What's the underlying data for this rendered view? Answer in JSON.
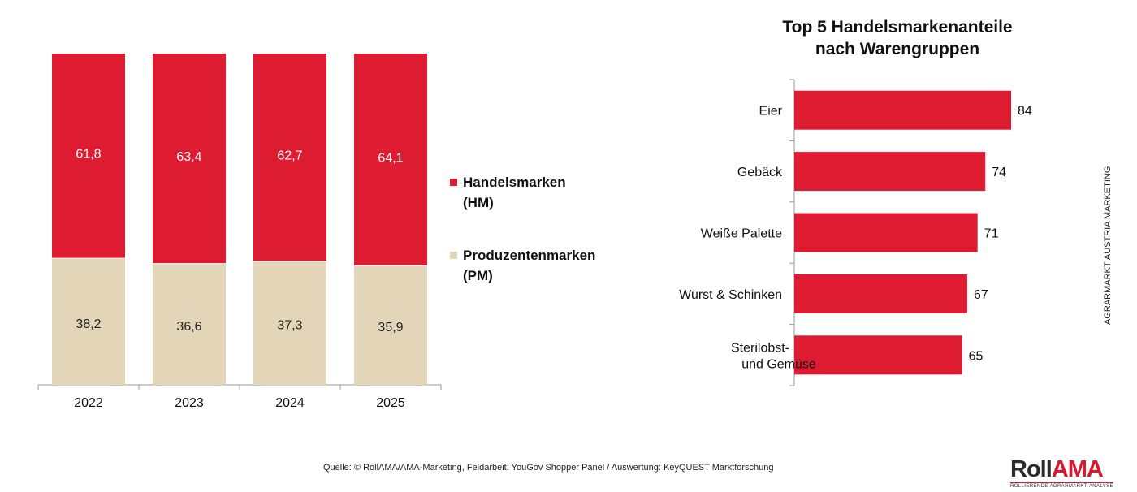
{
  "colors": {
    "hm": "#dd1b31",
    "pm": "#e3d5b8",
    "axis": "#999999"
  },
  "chart_data": [
    {
      "type": "bar",
      "stacked": true,
      "categories": [
        "2022",
        "2023",
        "2024",
        "2025"
      ],
      "series": [
        {
          "name": "Produzentenmarken (PM)",
          "values": [
            38.2,
            36.6,
            37.3,
            35.9
          ],
          "labels": [
            "38,2",
            "36,6",
            "37,3",
            "35,9"
          ]
        },
        {
          "name": "Handelsmarken (HM)",
          "values": [
            61.8,
            63.4,
            62.7,
            64.1
          ],
          "labels": [
            "61,8",
            "63,4",
            "62,7",
            "64,1"
          ]
        }
      ],
      "ylim": [
        0,
        100
      ],
      "grid": false,
      "legend": "right"
    },
    {
      "type": "bar",
      "orientation": "horizontal",
      "title": "Top 5 Handelsmarkenanteile nach Warengruppen",
      "categories": [
        "Eier",
        "Gebäck",
        "Weiße Palette",
        "Wurst & Schinken",
        "Sterilobst- und Gemüse"
      ],
      "values": [
        84,
        74,
        71,
        67,
        65
      ],
      "grid": false
    }
  ],
  "legend": [
    {
      "line1": "Handelsmarken",
      "line2": "(HM)"
    },
    {
      "line1": "Produzentenmarken",
      "line2": "(PM)"
    }
  ],
  "right_title_line1": "Top 5 Handelsmarkenanteile",
  "right_title_line2": "nach Warengruppen",
  "side_label": "AGRARMARKT AUSTRIA MARKETING",
  "source": "Quelle: © RollAMA/AMA-Marketing, Feldarbeit: YouGov Shopper Panel / Auswertung: KeyQUEST Marktforschung",
  "logo": {
    "part1": "Roll",
    "part2": "AMA",
    "subtitle": "ROLLIERENDE AGRARMARKT-ANALYSE"
  }
}
